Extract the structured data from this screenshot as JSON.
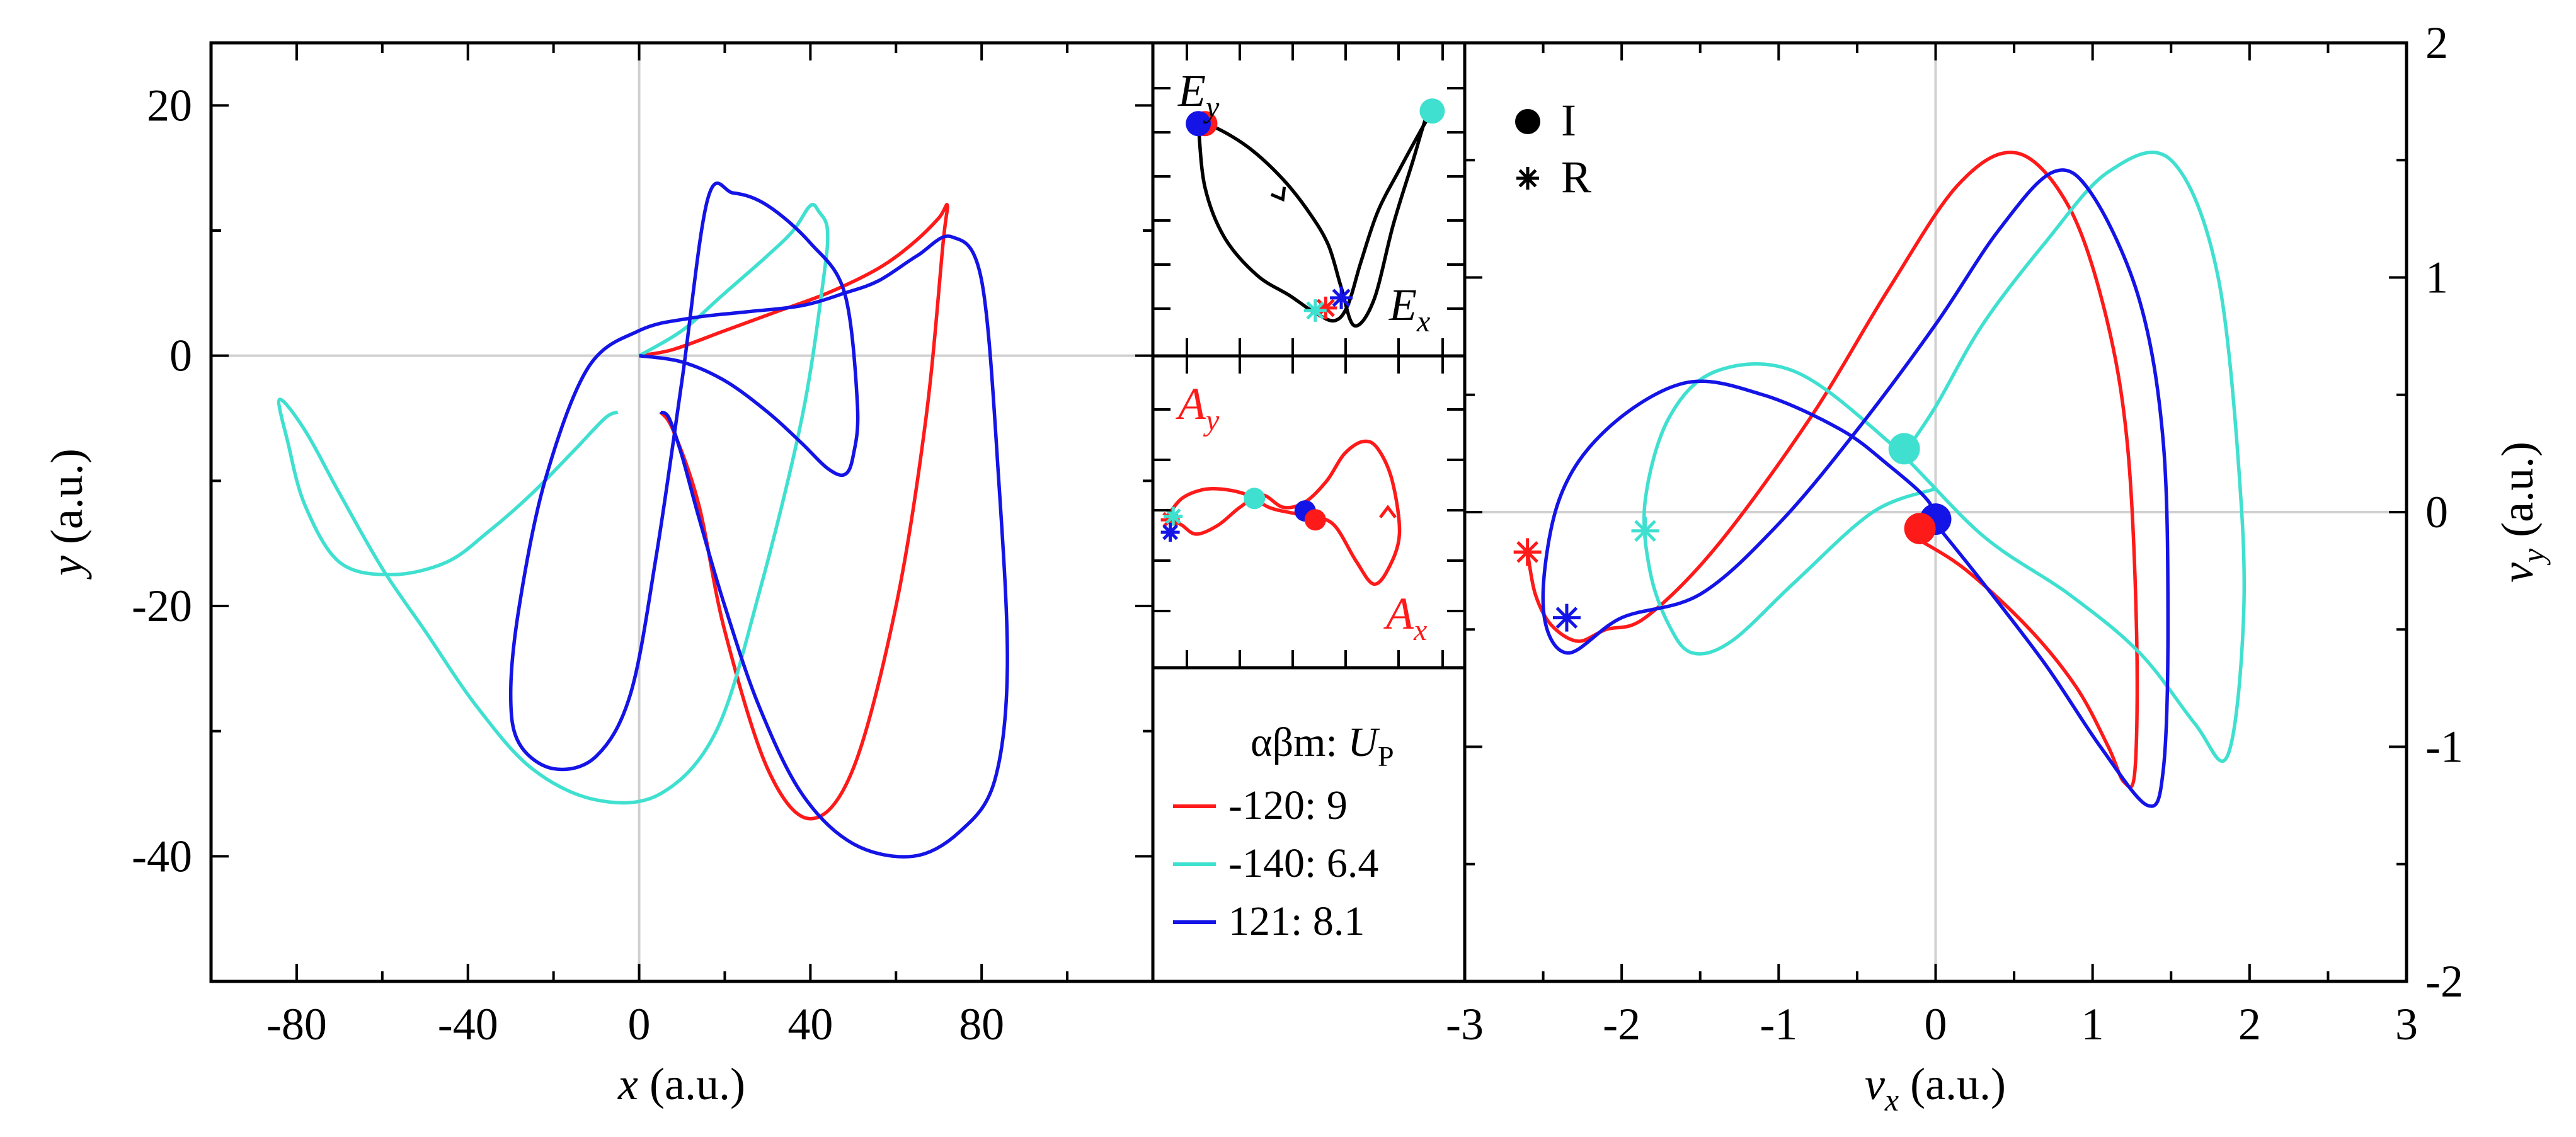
{
  "colors": {
    "red": "#ff1a1a",
    "cyan": "#40e0d0",
    "blue": "#1414e6",
    "black": "#000000",
    "grid": "#d0d0d0"
  },
  "chart_data": [
    {
      "id": "xy",
      "type": "line",
      "title": "",
      "xlabel_var": "x",
      "xlabel_unit": " (a.u.)",
      "ylabel_var": "y",
      "ylabel_unit": " (a.u.)",
      "xlim": [
        -100,
        120
      ],
      "ylim": [
        -50,
        25
      ],
      "xticks": [
        -80,
        -40,
        0,
        40,
        80
      ],
      "yticks": [
        20,
        0,
        -20,
        -40
      ],
      "series": [
        {
          "name": "-120",
          "color": "red",
          "x": [
            0,
            8,
            20,
            32,
            44,
            56,
            64,
            70,
            72,
            71,
            67,
            60,
            50,
            40,
            30,
            20,
            14,
            8,
            5
          ],
          "y": [
            0,
            0.5,
            2,
            3.5,
            5,
            7,
            9,
            11,
            12,
            9,
            -5,
            -20,
            -33,
            -37,
            -33,
            -22,
            -12,
            -6,
            -4.5
          ]
        },
        {
          "name": "-140",
          "color": "cyan",
          "x": [
            0,
            10,
            20,
            30,
            36,
            40,
            42,
            44,
            43,
            38,
            28,
            18,
            5,
            -10,
            -25,
            -38,
            -50,
            -60,
            -70,
            -78,
            -84,
            -82,
            -78,
            -70,
            -58,
            -45,
            -35,
            -25,
            -15,
            -8,
            -5
          ],
          "y": [
            0,
            2,
            5,
            8,
            10,
            12,
            11.5,
            10,
            6,
            -5,
            -19,
            -30,
            -35,
            -35.5,
            -33,
            -28,
            -22,
            -17,
            -11,
            -6,
            -3.5,
            -7,
            -12,
            -16.5,
            -17.5,
            -16.5,
            -14,
            -11,
            -7.5,
            -5,
            -4.5
          ]
        },
        {
          "name": "121",
          "color": "blue",
          "x": [
            0,
            10,
            20,
            30,
            38,
            44,
            48,
            50,
            51,
            48,
            40,
            30,
            22,
            16,
            10,
            4,
            -2,
            -10,
            -20,
            -28,
            -30,
            -28,
            -22,
            -12,
            0,
            12,
            25,
            38,
            48,
            56,
            65,
            73,
            80,
            84,
            86,
            83,
            75,
            64,
            50,
            38,
            28,
            20,
            14,
            10,
            7,
            5
          ],
          "y": [
            0,
            -0.5,
            -2,
            -4.5,
            -7,
            -9,
            -9.5,
            -8,
            -4,
            5,
            9,
            12,
            13,
            12.5,
            -2,
            -16,
            -27,
            -32,
            -33,
            -31,
            -27,
            -20,
            -10,
            -1,
            2,
            3,
            3.5,
            4,
            5,
            6,
            8,
            9.5,
            6,
            -10,
            -25,
            -34,
            -38,
            -40,
            -39,
            -35,
            -28,
            -20,
            -13,
            -8,
            -5,
            -4.5
          ]
        }
      ]
    },
    {
      "id": "E",
      "type": "line",
      "ylabel_var": "E",
      "ylabel_sub": "y",
      "xlabel_var": "E",
      "xlabel_sub": "x",
      "series": [
        {
          "name": "E",
          "color": "black",
          "x": [
            -1.0,
            -0.85,
            -0.6,
            -0.35,
            -0.15,
            0,
            0.1,
            0.2,
            0.35,
            0.5,
            0.65,
            0.75,
            0.8,
            0.72,
            0.55,
            0.38,
            0.25,
            0.15,
            0.05,
            -0.1,
            -0.3,
            -0.55,
            -0.8,
            -0.95,
            -1.0
          ],
          "y": [
            0.6,
            0.58,
            0.5,
            0.38,
            0.25,
            0.12,
            -0.05,
            -0.2,
            -0.1,
            0.2,
            0.45,
            0.62,
            0.65,
            0.58,
            0.42,
            0.25,
            0.05,
            -0.12,
            -0.18,
            -0.15,
            -0.08,
            0.0,
            0.15,
            0.35,
            0.6
          ]
        }
      ],
      "markers": [
        {
          "label": "I",
          "color": "red",
          "x": -0.95,
          "y": 0.6
        },
        {
          "label": "I",
          "color": "blue",
          "x": -1.0,
          "y": 0.6
        },
        {
          "label": "I",
          "color": "cyan",
          "x": 0.8,
          "y": 0.65
        },
        {
          "label": "R",
          "color": "red",
          "x": -0.02,
          "y": -0.13
        },
        {
          "label": "R",
          "color": "cyan",
          "x": -0.1,
          "y": -0.14
        },
        {
          "label": "R",
          "color": "blue",
          "x": 0.1,
          "y": -0.09
        }
      ],
      "arrows": [
        {
          "x": -0.35,
          "y": 0.3,
          "angle": 60
        }
      ]
    },
    {
      "id": "A",
      "type": "line",
      "ylabel_var": "A",
      "ylabel_sub": "y",
      "xlabel_var": "A",
      "xlabel_sub": "x",
      "series": [
        {
          "name": "A",
          "color": "red",
          "x": [
            -1.0,
            -0.9,
            -0.75,
            -0.6,
            -0.45,
            -0.3,
            -0.15,
            0.0,
            0.15,
            0.3,
            0.42,
            0.52,
            0.6,
            0.55,
            0.45,
            0.35,
            0.22,
            0.1,
            -0.05,
            -0.2,
            -0.35,
            -0.5,
            -0.65,
            -0.8,
            -0.9,
            -1.0
          ],
          "y": [
            0.0,
            0.1,
            0.15,
            0.15,
            0.12,
            0.05,
            0.02,
            0.0,
            -0.05,
            -0.25,
            -0.38,
            -0.3,
            -0.1,
            0.2,
            0.38,
            0.42,
            0.35,
            0.2,
            0.08,
            0.05,
            0.12,
            0.05,
            -0.05,
            -0.1,
            -0.05,
            0.0
          ]
        }
      ],
      "markers": [
        {
          "label": "I",
          "color": "cyan",
          "x": -0.4,
          "y": 0.1
        },
        {
          "label": "I",
          "color": "blue",
          "x": -0.05,
          "y": 0.03
        },
        {
          "label": "I",
          "color": "red",
          "x": 0.02,
          "y": -0.02
        },
        {
          "label": "R",
          "color": "red",
          "x": -0.98,
          "y": -0.02
        },
        {
          "label": "R",
          "color": "cyan",
          "x": -0.96,
          "y": 0.0
        },
        {
          "label": "R",
          "color": "blue",
          "x": -0.98,
          "y": -0.09
        }
      ],
      "arrows": [
        {
          "x": 0.52,
          "y": 0.05,
          "angle": -90
        }
      ]
    },
    {
      "id": "v",
      "type": "line",
      "xlabel_var": "v",
      "xlabel_sub": "x",
      "xlabel_unit": " (a.u.)",
      "ylabel_var": "v",
      "ylabel_sub": "y",
      "ylabel_unit": " (a.u.)",
      "xlim": [
        -3,
        3
      ],
      "ylim": [
        -2,
        2
      ],
      "xticks": [
        -3,
        -2,
        -1,
        0,
        1,
        2,
        3
      ],
      "yticks": [
        2,
        1,
        0,
        -1,
        -2
      ],
      "series": [
        {
          "name": "-120",
          "color": "red",
          "x": [
            -0.1,
            0.2,
            0.6,
            0.9,
            1.1,
            1.2,
            1.27,
            1.28,
            1.22,
            1.08,
            0.85,
            0.52,
            0.15,
            -0.3,
            -0.8,
            -1.4,
            -1.85,
            -2.1,
            -2.28,
            -2.45,
            -2.55,
            -2.6
          ],
          "y": [
            -0.12,
            -0.25,
            -0.5,
            -0.75,
            -1.0,
            -1.15,
            -1.1,
            -0.5,
            0.3,
            0.85,
            1.3,
            1.53,
            1.4,
            0.95,
            0.4,
            -0.15,
            -0.45,
            -0.5,
            -0.55,
            -0.48,
            -0.35,
            -0.17
          ]
        },
        {
          "name": "-140",
          "color": "cyan",
          "x": [
            -0.2,
            0.0,
            0.3,
            0.7,
            1.1,
            1.5,
            1.8,
            1.95,
            1.95,
            1.85,
            1.65,
            1.3,
            0.85,
            0.3,
            -0.3,
            -0.9,
            -1.4,
            -1.7,
            -1.85,
            -1.82,
            -1.7,
            -1.55,
            -1.3,
            -0.9,
            -0.4,
            0.0
          ],
          "y": [
            0.25,
            0.45,
            0.8,
            1.15,
            1.45,
            1.5,
            1.0,
            0.0,
            -0.6,
            -1.05,
            -0.9,
            -0.6,
            -0.35,
            -0.1,
            0.3,
            0.6,
            0.6,
            0.4,
            0.05,
            -0.25,
            -0.48,
            -0.6,
            -0.55,
            -0.3,
            0.0,
            0.1
          ]
        },
        {
          "name": "121",
          "color": "blue",
          "x": [
            0.0,
            0.3,
            0.7,
            1.05,
            1.35,
            1.45,
            1.48,
            1.45,
            1.3,
            1.0,
            0.75,
            0.4,
            0.0,
            -0.5,
            -1.0,
            -1.5,
            -2.0,
            -2.35,
            -2.5,
            -2.4,
            -2.1,
            -1.6,
            -1.1,
            -0.6,
            -0.3,
            -0.05,
            0.0
          ],
          "y": [
            -0.05,
            -0.3,
            -0.65,
            -1.0,
            -1.25,
            -1.1,
            -0.5,
            0.3,
            0.9,
            1.35,
            1.45,
            1.2,
            0.8,
            0.35,
            -0.05,
            -0.35,
            -0.45,
            -0.6,
            -0.4,
            0.05,
            0.35,
            0.55,
            0.5,
            0.35,
            0.2,
            0.05,
            -0.05
          ]
        }
      ],
      "markers": [
        {
          "label": "I",
          "color": "cyan",
          "x": -0.2,
          "y": 0.27
        },
        {
          "label": "I",
          "color": "blue",
          "x": 0.0,
          "y": -0.03
        },
        {
          "label": "I",
          "color": "red",
          "x": -0.1,
          "y": -0.07
        },
        {
          "label": "R",
          "color": "red",
          "x": -2.6,
          "y": -0.17
        },
        {
          "label": "R",
          "color": "cyan",
          "x": -1.85,
          "y": -0.08
        },
        {
          "label": "R",
          "color": "blue",
          "x": -2.35,
          "y": -0.45
        }
      ]
    }
  ],
  "legend": {
    "header_greek": "αβm: ",
    "header_var": "U",
    "header_sub": "P",
    "rows": [
      {
        "label": "-120:  9",
        "color": "red"
      },
      {
        "label": "-140: 6.4",
        "color": "cyan"
      },
      {
        "label": " 121: 8.1",
        "color": "blue"
      }
    ]
  },
  "marker_legend": [
    {
      "symbol": "●",
      "label": "I"
    },
    {
      "symbol": "✱",
      "label": "R"
    }
  ]
}
